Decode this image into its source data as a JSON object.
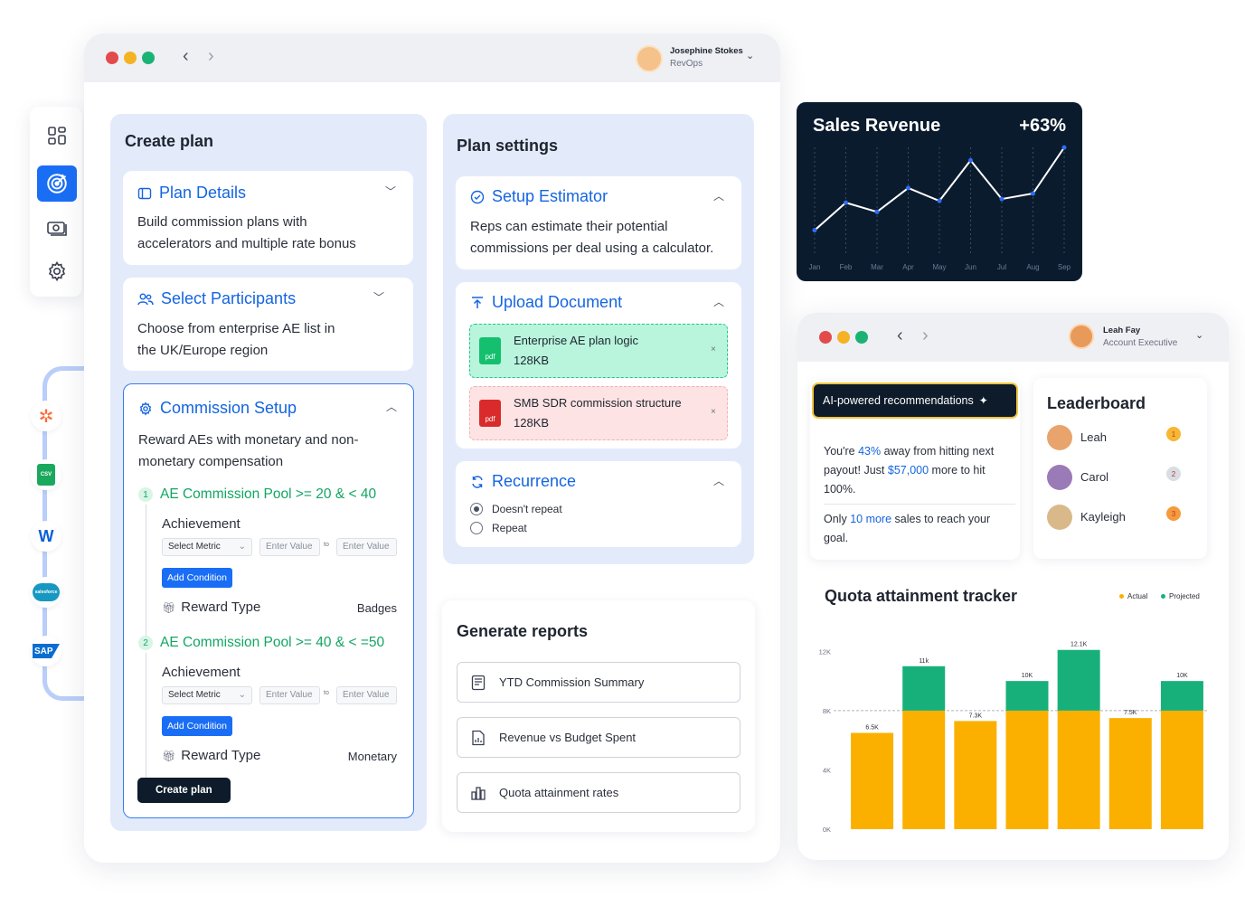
{
  "user": {
    "name": "Josephine Stokes",
    "role": "RevOps"
  },
  "create_plan": {
    "title": "Create plan",
    "plan_details": {
      "title": "Plan Details",
      "desc1": "Build commission plans with",
      "desc2": "accelerators and multiple rate bonus"
    },
    "participants": {
      "title": "Select Participants",
      "desc1": "Choose from enterprise AE list in",
      "desc2": "the UK/Europe region"
    },
    "commission": {
      "title": "Commission Setup",
      "desc1": "Reward AEs with monetary and non-",
      "desc2": "monetary compensation",
      "pools": [
        {
          "num": "1",
          "title": "AE Commission Pool >= 20 & < 40",
          "achievement": "Achievement",
          "metric": "Select Metric",
          "value_ph": "Enter Value",
          "to": "to",
          "add": "Add Condition",
          "reward_label": "Reward Type",
          "reward_value": "Badges"
        },
        {
          "num": "2",
          "title": "AE Commission Pool >= 40 & < =50",
          "achievement": "Achievement",
          "metric": "Select Metric",
          "value_ph": "Enter Value",
          "to": "to",
          "add": "Add Condition",
          "reward_label": "Reward Type",
          "reward_value": "Monetary"
        }
      ],
      "button": "Create plan"
    }
  },
  "plan_settings": {
    "title": "Plan settings",
    "estimator": {
      "title": "Setup Estimator",
      "desc1": "Reps can estimate their potential",
      "desc2": "commissions per deal using a calculator."
    },
    "upload": {
      "title": "Upload Document",
      "files": [
        {
          "name": "Enterprise AE plan logic",
          "size": "128KB",
          "icon": "pdf"
        },
        {
          "name": "SMB SDR commission structure",
          "size": "128KB",
          "icon": "pdf"
        }
      ]
    },
    "recurrence": {
      "title": "Recurrence",
      "options": [
        "Doesn't repeat",
        "Repeat"
      ],
      "selected": "Doesn't repeat"
    }
  },
  "reports": {
    "title": "Generate reports",
    "items": [
      "YTD Commission Summary",
      "Revenue vs Budget Spent",
      "Quota attainment rates"
    ]
  },
  "sales_revenue": {
    "title": "Sales Revenue",
    "change": "+63%",
    "chart_data": {
      "type": "line",
      "categories": [
        "Jan",
        "Feb",
        "Mar",
        "Apr",
        "May",
        "Jun",
        "Jul",
        "Aug",
        "Sep"
      ],
      "values": [
        1,
        2.5,
        2,
        3.3,
        2.6,
        4.8,
        2.7,
        3,
        5.5
      ],
      "ylim": [
        0,
        6
      ]
    }
  },
  "window2": {
    "user": {
      "name": "Leah Fay",
      "role": "Account Executive"
    },
    "ai": {
      "label": "AI-powered recommendations",
      "msg1_a": "You're ",
      "msg1_pct": "43%",
      "msg1_b": " away from hitting next",
      "msg2_a": "payout! Just ",
      "msg2_amt": "$57,000",
      "msg2_b": " more to hit",
      "msg3": "100%.",
      "msg4_a": "Only ",
      "msg4_more": "10 more",
      "msg4_b": " sales to reach your",
      "msg5": "goal."
    },
    "leaderboard": {
      "title": "Leaderboard",
      "people": [
        "Leah",
        "Carol",
        "Kayleigh"
      ],
      "medals": [
        "1",
        "2",
        "3"
      ]
    },
    "quota": {
      "title": "Quota attainment tracker",
      "legend": [
        "Actual",
        "Projected"
      ],
      "chart_data": {
        "type": "bar",
        "yticks": [
          "0K",
          "4K",
          "8K",
          "12K"
        ],
        "ylim": [
          0,
          13000
        ],
        "actual": [
          6500,
          8000,
          7300,
          8000,
          8000,
          7500,
          8000
        ],
        "total": [
          6500,
          11000,
          7300,
          10000,
          12100,
          7500,
          10000
        ],
        "labels": [
          "6.5K",
          "11k",
          "7.3K",
          "10K",
          "12.1K",
          "7.5K",
          "10K"
        ],
        "colors": {
          "actual": "#fbb000",
          "projected": "#18b07a"
        }
      }
    }
  }
}
